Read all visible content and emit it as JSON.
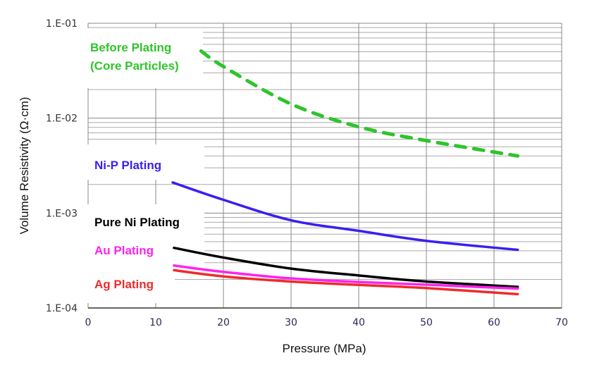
{
  "chart_data": {
    "type": "line",
    "xlabel": "Pressure (MPa)",
    "ylabel": "Volume Resistivity (Ω·cm)",
    "xlim": [
      0,
      70
    ],
    "ylim": [
      0.0001,
      0.1
    ],
    "yscale": "log",
    "grid": true,
    "x_ticks": [
      "0",
      "10",
      "20",
      "30",
      "40",
      "50",
      "60",
      "70"
    ],
    "y_ticks": [
      "1.E-01",
      "1.E-02",
      "1.E-03",
      "1.E-04"
    ],
    "series": [
      {
        "name": "Before Plating (Core Particles)",
        "label_lines": [
          "Before Plating",
          "(Core Particles)"
        ],
        "color": "#2fc42a",
        "dashed": true,
        "x": [
          16.7,
          20,
          30,
          40,
          50,
          63.5
        ],
        "y": [
          0.051,
          0.035,
          0.0141,
          0.0081,
          0.0058,
          0.004
        ]
      },
      {
        "name": "Ni-P Plating",
        "label_lines": [
          "Ni-P Plating"
        ],
        "color": "#3a1ff0",
        "dashed": false,
        "x": [
          12.5,
          20,
          30,
          40,
          50,
          63.5
        ],
        "y": [
          0.0021,
          0.00138,
          0.00084,
          0.00065,
          0.00051,
          0.00041
        ]
      },
      {
        "name": "Pure Ni Plating",
        "label_lines": [
          "Pure Ni Plating"
        ],
        "color": "#000000",
        "dashed": false,
        "x": [
          12.7,
          20,
          30,
          40,
          50,
          63.5
        ],
        "y": [
          0.00043,
          0.00034,
          0.00026,
          0.00022,
          0.00019,
          0.000167
        ]
      },
      {
        "name": "Au Plating",
        "label_lines": [
          "Au Plating"
        ],
        "color": "#ff22ee",
        "dashed": false,
        "x": [
          12.7,
          20,
          30,
          40,
          50,
          63.5
        ],
        "y": [
          0.00028,
          0.00024,
          0.000205,
          0.000188,
          0.000176,
          0.00016
        ]
      },
      {
        "name": "Ag Plating",
        "label_lines": [
          "Ag Plating"
        ],
        "color": "#ee2b2b",
        "dashed": false,
        "x": [
          12.7,
          20,
          30,
          40,
          50,
          63.5
        ],
        "y": [
          0.00025,
          0.000215,
          0.00019,
          0.000175,
          0.000162,
          0.00014
        ]
      }
    ]
  }
}
